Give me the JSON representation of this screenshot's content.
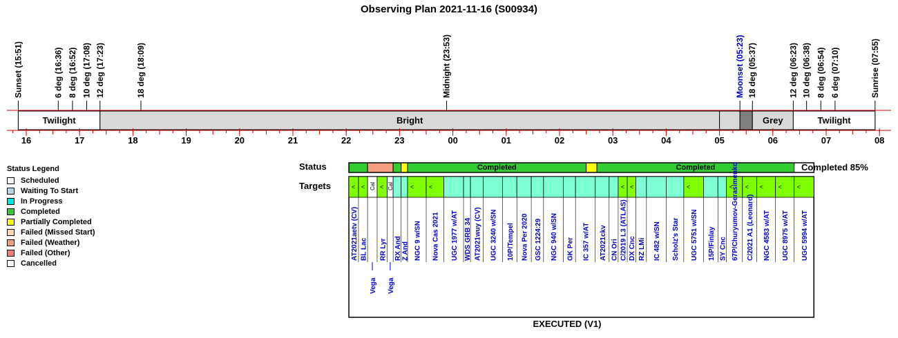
{
  "title": "Observing Plan 2021-11-16 (S00934)",
  "labels": {
    "status": "Status",
    "targets": "Targets",
    "completed": "Completed 85%",
    "footer": "EXECUTED (V1)"
  },
  "legend": {
    "title": "Status Legend",
    "items": [
      {
        "label": "Scheduled",
        "color": "#ffffff"
      },
      {
        "label": "Waiting To Start",
        "color": "#add8e6"
      },
      {
        "label": "In Progress",
        "color": "#00e5e5"
      },
      {
        "label": "Completed",
        "color": "#33cc33"
      },
      {
        "label": "Partially Completed",
        "color": "#ffff00"
      },
      {
        "label": "Failed (Missed Start)",
        "color": "#ffd8a8"
      },
      {
        "label": "Failed (Weather)",
        "color": "#f4a080"
      },
      {
        "label": "Failed (Other)",
        "color": "#f08070"
      },
      {
        "label": "Cancelled",
        "color": "#ffffff"
      }
    ]
  },
  "chart_data": {
    "type": "timeline",
    "time_axis": {
      "start_hour": 15.6,
      "end_hour": 32.1,
      "ticks": [
        "16",
        "17",
        "18",
        "19",
        "20",
        "21",
        "22",
        "23",
        "00",
        "01",
        "02",
        "03",
        "04",
        "05",
        "06",
        "07",
        "08"
      ],
      "tick_hours": [
        16,
        17,
        18,
        19,
        20,
        21,
        22,
        23,
        24,
        25,
        26,
        27,
        28,
        29,
        30,
        31,
        32
      ]
    },
    "events": [
      {
        "label": "Sunset (15:51)",
        "hour": 15.85,
        "color": "#000000"
      },
      {
        "label": "6 deg (16:36)",
        "hour": 16.6,
        "color": "#000000"
      },
      {
        "label": "8 deg (16:52)",
        "hour": 16.867,
        "color": "#000000"
      },
      {
        "label": "10 deg (17:08)",
        "hour": 17.133,
        "color": "#000000"
      },
      {
        "label": "12 deg (17:23)",
        "hour": 17.383,
        "color": "#000000"
      },
      {
        "label": "18 deg (18:09)",
        "hour": 18.15,
        "color": "#000000"
      },
      {
        "label": "Midnight (23:53)",
        "hour": 23.883,
        "color": "#000000"
      },
      {
        "label": "Moonset (05:23)",
        "hour": 29.383,
        "color": "#0000cc"
      },
      {
        "label": "18 deg (05:37)",
        "hour": 29.617,
        "color": "#000000"
      },
      {
        "label": "12 deg (06:23)",
        "hour": 30.383,
        "color": "#000000"
      },
      {
        "label": "10 deg (06:38)",
        "hour": 30.633,
        "color": "#000000"
      },
      {
        "label": "8 deg (06:54)",
        "hour": 30.9,
        "color": "#000000"
      },
      {
        "label": "6 deg (07:10)",
        "hour": 31.167,
        "color": "#000000"
      },
      {
        "label": "Sunrise (07:55)",
        "hour": 31.917,
        "color": "#000000"
      }
    ],
    "sky_bands": [
      {
        "label": "Twilight",
        "start": 15.85,
        "end": 17.383,
        "color": "#ffffff"
      },
      {
        "label": "Bright",
        "start": 17.383,
        "end": 29.0,
        "color": "#d9d9d9"
      },
      {
        "label": "",
        "start": 29.0,
        "end": 29.383,
        "color": "#d9d9d9"
      },
      {
        "label": "",
        "start": 29.383,
        "end": 29.617,
        "color": "#7f7f7f"
      },
      {
        "label": "Grey",
        "start": 29.617,
        "end": 30.383,
        "color": "#d9d9d9"
      },
      {
        "label": "Twilight",
        "start": 30.383,
        "end": 31.917,
        "color": "#ffffff"
      }
    ],
    "status_segments": [
      {
        "label": "",
        "status": "Completed",
        "start": 22.05,
        "end": 22.4
      },
      {
        "label": "",
        "status": "Failed (Weather)",
        "start": 22.4,
        "end": 22.88
      },
      {
        "label": "",
        "status": "Completed",
        "start": 22.88,
        "end": 23.03
      },
      {
        "label": "",
        "status": "Partially Completed",
        "start": 23.03,
        "end": 23.15
      },
      {
        "label": "Completed",
        "status": "Completed",
        "start": 23.15,
        "end": 26.5
      },
      {
        "label": "",
        "status": "Partially Completed",
        "start": 26.5,
        "end": 26.7
      },
      {
        "label": "Completed",
        "status": "Completed",
        "start": 26.7,
        "end": 30.4
      }
    ],
    "targets": [
      {
        "name": "AT2021aetv (CV)",
        "start": 22.05,
        "end": 22.23,
        "color": "#80ff00",
        "mark": "<"
      },
      {
        "name": "BL Lac",
        "start": 22.23,
        "end": 22.4,
        "color": "#80ff00",
        "mark": "<"
      },
      {
        "name": "Vega",
        "start": 22.4,
        "end": 22.58,
        "color": "#ffffff",
        "mark": "Cal",
        "lower": true
      },
      {
        "name": "RR Lyr",
        "start": 22.58,
        "end": 22.77,
        "color": "#80ff00",
        "mark": "<"
      },
      {
        "name": "Vega",
        "start": 22.77,
        "end": 22.88,
        "color": "#ffffff",
        "mark": "Cal",
        "lower": true
      },
      {
        "name": "RX And",
        "start": 22.88,
        "end": 23.03,
        "color": "#7fffd4",
        "mark": ""
      },
      {
        "name": "Z And",
        "start": 23.03,
        "end": 23.15,
        "color": "#7fffd4",
        "mark": ""
      },
      {
        "name": "NGC 9 w/SN",
        "start": 23.15,
        "end": 23.5,
        "color": "#80ff00",
        "mark": "<"
      },
      {
        "name": "Nova Cas 2021",
        "start": 23.5,
        "end": 23.83,
        "color": "#80ff00",
        "mark": "<"
      },
      {
        "name": "UGC 1977 w/AT",
        "start": 23.83,
        "end": 24.2,
        "color": "#7fffd4",
        "mark": ""
      },
      {
        "name": "WDS GRB 34",
        "start": 24.2,
        "end": 24.33,
        "color": "#7fffd4",
        "mark": ""
      },
      {
        "name": "AT2021wuy (CV)",
        "start": 24.33,
        "end": 24.57,
        "color": "#7fffd4",
        "mark": ""
      },
      {
        "name": "UGC 3240 w/SN",
        "start": 24.57,
        "end": 24.93,
        "color": "#7fffd4",
        "mark": ""
      },
      {
        "name": "10P/Tempel",
        "start": 24.93,
        "end": 25.2,
        "color": "#7fffd4",
        "mark": ""
      },
      {
        "name": "Nova Per 2020",
        "start": 25.2,
        "end": 25.47,
        "color": "#7fffd4",
        "mark": ""
      },
      {
        "name": "GSC 1224:29",
        "start": 25.47,
        "end": 25.7,
        "color": "#7fffd4",
        "mark": ""
      },
      {
        "name": "NGC 940 w/SN",
        "start": 25.7,
        "end": 26.07,
        "color": "#7fffd4",
        "mark": ""
      },
      {
        "name": "GK Per",
        "start": 26.07,
        "end": 26.3,
        "color": "#7fffd4",
        "mark": ""
      },
      {
        "name": "IC 357 w/AT",
        "start": 26.3,
        "end": 26.67,
        "color": "#7fffd4",
        "mark": ""
      },
      {
        "name": "AT2021ckv",
        "start": 26.67,
        "end": 26.93,
        "color": "#7fffd4",
        "mark": ""
      },
      {
        "name": "CN Ori",
        "start": 26.93,
        "end": 27.1,
        "color": "#7fffd4",
        "mark": ""
      },
      {
        "name": "C/2019 L3 (ATLAS)",
        "start": 27.1,
        "end": 27.27,
        "color": "#80ff00",
        "mark": "<"
      },
      {
        "name": "DX Cnc",
        "start": 27.27,
        "end": 27.43,
        "color": "#80ff00",
        "mark": "<"
      },
      {
        "name": "RZ LMi",
        "start": 27.43,
        "end": 27.63,
        "color": "#7fffd4",
        "mark": ""
      },
      {
        "name": "IC 482 w/SN",
        "start": 27.63,
        "end": 28.0,
        "color": "#7fffd4",
        "mark": ""
      },
      {
        "name": "Scholz's Star",
        "start": 28.0,
        "end": 28.33,
        "color": "#7fffd4",
        "mark": ""
      },
      {
        "name": "UGC 5751 w/SN",
        "start": 28.33,
        "end": 28.7,
        "color": "#80ff00",
        "mark": "<"
      },
      {
        "name": "15P/Finlay",
        "start": 28.7,
        "end": 28.97,
        "color": "#7fffd4",
        "mark": ""
      },
      {
        "name": "SY Cnc",
        "start": 28.97,
        "end": 29.13,
        "color": "#7fffd4",
        "mark": ""
      },
      {
        "name": "67P/Churyumov-Gerasimenko",
        "start": 29.13,
        "end": 29.43,
        "color": "#80ff00",
        "mark": "<"
      },
      {
        "name": "C/2021 A1 (Leonard)",
        "start": 29.43,
        "end": 29.7,
        "color": "#80ff00",
        "mark": "<"
      },
      {
        "name": "NGC 4583 w/AT",
        "start": 29.7,
        "end": 30.05,
        "color": "#80ff00",
        "mark": "<"
      },
      {
        "name": "UGC 8975 w/AT",
        "start": 30.05,
        "end": 30.4,
        "color": "#80ff00",
        "mark": "<"
      },
      {
        "name": "UGC 5994 w/AT",
        "start": 30.4,
        "end": 30.77,
        "color": "#80ff00",
        "mark": "<"
      }
    ]
  }
}
